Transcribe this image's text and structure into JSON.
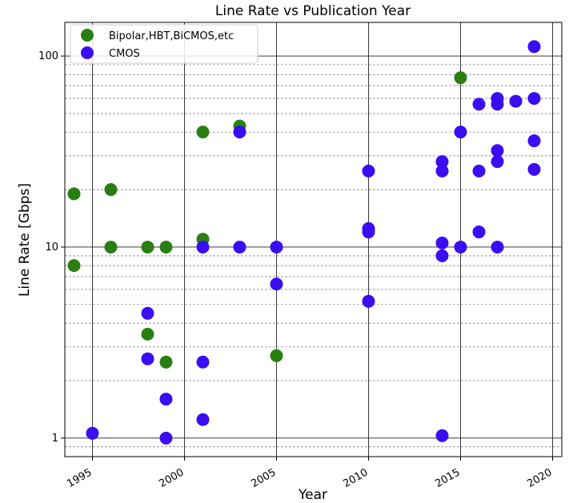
{
  "chart_data": {
    "type": "scatter",
    "title": "Line Rate vs Publication Year",
    "xlabel": "Year",
    "ylabel": "Line Rate [Gbps]",
    "xlim": [
      1993.5,
      2020.5
    ],
    "ylim": [
      0.8,
      150
    ],
    "yscale": "log",
    "grid": true,
    "legend_position": "top-left",
    "x_ticks": [
      1995,
      2000,
      2005,
      2010,
      2015,
      2020
    ],
    "x_tick_labels": [
      "1995",
      "2000",
      "2005",
      "2010",
      "2015",
      "2020"
    ],
    "y_ticks": [
      1,
      10,
      100
    ],
    "y_tick_labels": [
      "1",
      "10",
      "100"
    ],
    "series": [
      {
        "name": "Bipolar,HBT,BiCMOS,etc",
        "color": "#2a7f12",
        "points": [
          {
            "x": 1994,
            "y": 19
          },
          {
            "x": 1994,
            "y": 8
          },
          {
            "x": 1996,
            "y": 20
          },
          {
            "x": 1996,
            "y": 10
          },
          {
            "x": 1998,
            "y": 10
          },
          {
            "x": 1998,
            "y": 3.5
          },
          {
            "x": 1999,
            "y": 10
          },
          {
            "x": 1999,
            "y": 2.5
          },
          {
            "x": 2001,
            "y": 40
          },
          {
            "x": 2001,
            "y": 11
          },
          {
            "x": 2003,
            "y": 43
          },
          {
            "x": 2005,
            "y": 2.7
          },
          {
            "x": 2015,
            "y": 77
          }
        ]
      },
      {
        "name": "CMOS",
        "color": "#3a0df2",
        "points": [
          {
            "x": 1995,
            "y": 1.06
          },
          {
            "x": 1998,
            "y": 4.5
          },
          {
            "x": 1998,
            "y": 2.6
          },
          {
            "x": 1999,
            "y": 1.6
          },
          {
            "x": 1999,
            "y": 1.0
          },
          {
            "x": 2001,
            "y": 10
          },
          {
            "x": 2001,
            "y": 2.5
          },
          {
            "x": 2001,
            "y": 1.25
          },
          {
            "x": 2003,
            "y": 40
          },
          {
            "x": 2003,
            "y": 10
          },
          {
            "x": 2005,
            "y": 10
          },
          {
            "x": 2005,
            "y": 6.4
          },
          {
            "x": 2010,
            "y": 25
          },
          {
            "x": 2010,
            "y": 12.5
          },
          {
            "x": 2010,
            "y": 12
          },
          {
            "x": 2010,
            "y": 5.2
          },
          {
            "x": 2014,
            "y": 28
          },
          {
            "x": 2014,
            "y": 25
          },
          {
            "x": 2014,
            "y": 10.5
          },
          {
            "x": 2014,
            "y": 9
          },
          {
            "x": 2014,
            "y": 1.03
          },
          {
            "x": 2015,
            "y": 40
          },
          {
            "x": 2015,
            "y": 10
          },
          {
            "x": 2016,
            "y": 56
          },
          {
            "x": 2016,
            "y": 25
          },
          {
            "x": 2016,
            "y": 12
          },
          {
            "x": 2017,
            "y": 60
          },
          {
            "x": 2017,
            "y": 56
          },
          {
            "x": 2017,
            "y": 32
          },
          {
            "x": 2017,
            "y": 28
          },
          {
            "x": 2017,
            "y": 10
          },
          {
            "x": 2018,
            "y": 58
          },
          {
            "x": 2019,
            "y": 112
          },
          {
            "x": 2019,
            "y": 60
          },
          {
            "x": 2019,
            "y": 36
          },
          {
            "x": 2019,
            "y": 25.5
          }
        ]
      }
    ]
  }
}
